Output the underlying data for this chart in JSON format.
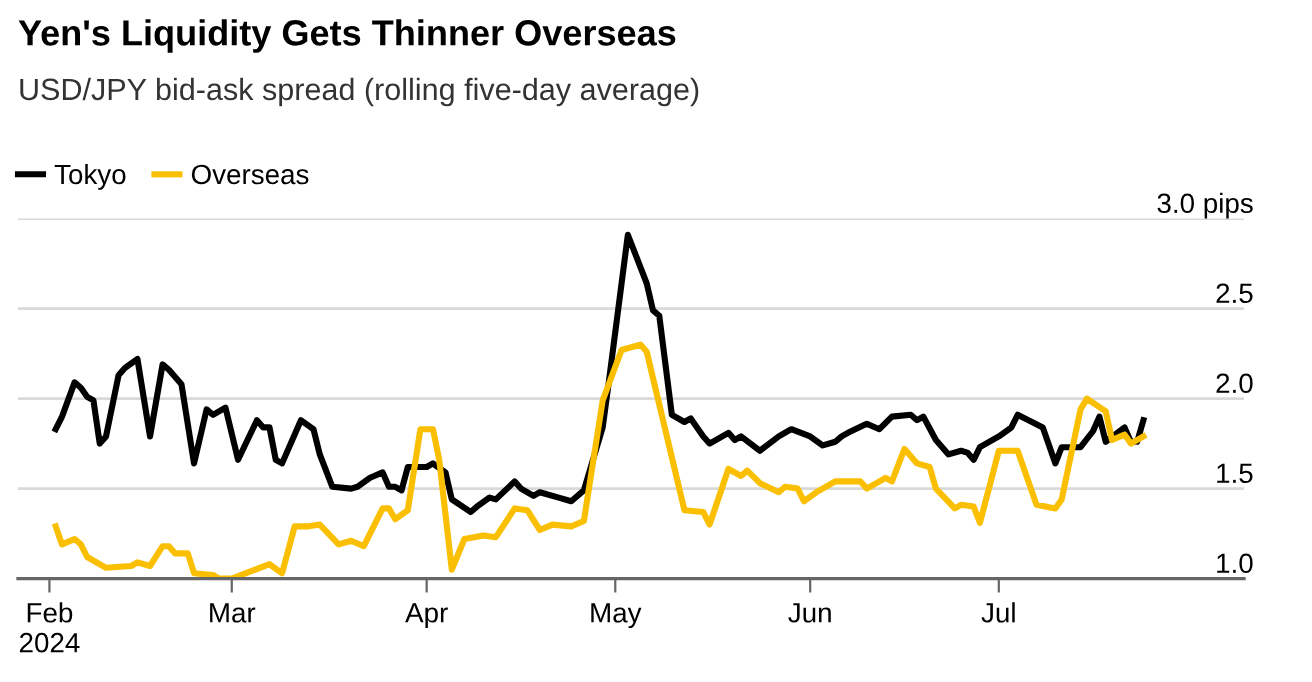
{
  "chart_data": {
    "type": "line",
    "title": "Yen's Liquidity Gets Thinner Overseas",
    "subtitle": "USD/JPY bid-ask spread (rolling five-day average)",
    "xlim": [
      "2024-01-27",
      "2024-08-09"
    ],
    "xticks": [
      {
        "value": "2024-02-01",
        "label": "Feb\n2024"
      },
      {
        "value": "2024-03-01",
        "label": "Mar"
      },
      {
        "value": "2024-04-01",
        "label": "Apr"
      },
      {
        "value": "2024-05-01",
        "label": "May"
      },
      {
        "value": "2024-06-01",
        "label": "Jun"
      },
      {
        "value": "2024-07-01",
        "label": "Jul"
      }
    ],
    "ylim": [
      1.0,
      3.0
    ],
    "yticks": [
      {
        "value": 1.0,
        "label": "1.0"
      },
      1.5,
      {
        "value": 2.0,
        "label": "2.0"
      },
      2.5,
      {
        "value": 3.0,
        "label": "3.0 pips"
      }
    ],
    "grid": "y",
    "legend": "top left",
    "marker": "none",
    "line_style": "solid",
    "series": [
      {
        "name": "Tokyo",
        "color": "#000000",
        "x": [
          "2024-02-02",
          "2024-02-03",
          "2024-02-05",
          "2024-02-06",
          "2024-02-07",
          "2024-02-08",
          "2024-02-09",
          "2024-02-10",
          "2024-02-12",
          "2024-02-13",
          "2024-02-15",
          "2024-02-17",
          "2024-02-19",
          "2024-02-20",
          "2024-02-22",
          "2024-02-24",
          "2024-02-26",
          "2024-02-27",
          "2024-02-29",
          "2024-03-02",
          "2024-03-05",
          "2024-03-06",
          "2024-03-07",
          "2024-03-08",
          "2024-03-09",
          "2024-03-12",
          "2024-03-14",
          "2024-03-15",
          "2024-03-17",
          "2024-03-20",
          "2024-03-21",
          "2024-03-23",
          "2024-03-25",
          "2024-03-26",
          "2024-03-27",
          "2024-03-28",
          "2024-03-29",
          "2024-04-01",
          "2024-04-02",
          "2024-04-04",
          "2024-04-05",
          "2024-04-08",
          "2024-04-09",
          "2024-04-11",
          "2024-04-12",
          "2024-04-15",
          "2024-04-16",
          "2024-04-18",
          "2024-04-19",
          "2024-04-22",
          "2024-04-24",
          "2024-04-26",
          "2024-04-29",
          "2024-04-30",
          "2024-05-03",
          "2024-05-06",
          "2024-05-07",
          "2024-05-08",
          "2024-05-10",
          "2024-05-12",
          "2024-05-13",
          "2024-05-15",
          "2024-05-16",
          "2024-05-19",
          "2024-05-20",
          "2024-05-21",
          "2024-05-24",
          "2024-05-27",
          "2024-05-29",
          "2024-06-01",
          "2024-06-03",
          "2024-06-05",
          "2024-06-06",
          "2024-06-07",
          "2024-06-10",
          "2024-06-12",
          "2024-06-14",
          "2024-06-17",
          "2024-06-18",
          "2024-06-19",
          "2024-06-21",
          "2024-06-23",
          "2024-06-25",
          "2024-06-26",
          "2024-06-27",
          "2024-06-28",
          "2024-07-01",
          "2024-07-03",
          "2024-07-04",
          "2024-07-08",
          "2024-07-09",
          "2024-07-10",
          "2024-07-11",
          "2024-07-14",
          "2024-07-16",
          "2024-07-17",
          "2024-07-18",
          "2024-07-21",
          "2024-07-22",
          "2024-07-23",
          "2024-07-24"
        ],
        "values": [
          1.83,
          1.9,
          2.09,
          2.06,
          2.01,
          1.99,
          1.75,
          1.79,
          2.13,
          2.17,
          2.22,
          1.79,
          2.19,
          2.16,
          2.08,
          1.64,
          1.94,
          1.91,
          1.95,
          1.66,
          1.88,
          1.84,
          1.84,
          1.66,
          1.64,
          1.88,
          1.83,
          1.69,
          1.51,
          1.5,
          1.51,
          1.56,
          1.59,
          1.51,
          1.51,
          1.49,
          1.62,
          1.62,
          1.64,
          1.59,
          1.44,
          1.37,
          1.4,
          1.45,
          1.44,
          1.54,
          1.5,
          1.46,
          1.48,
          1.45,
          1.43,
          1.49,
          1.84,
          2.1,
          2.91,
          2.64,
          2.49,
          2.46,
          1.91,
          1.87,
          1.89,
          1.79,
          1.75,
          1.81,
          1.77,
          1.79,
          1.71,
          1.79,
          1.83,
          1.79,
          1.74,
          1.76,
          1.79,
          1.81,
          1.86,
          1.83,
          1.9,
          1.91,
          1.88,
          1.9,
          1.77,
          1.69,
          1.71,
          1.7,
          1.66,
          1.73,
          1.79,
          1.84,
          1.91,
          1.84,
          1.74,
          1.64,
          1.73,
          1.73,
          1.82,
          1.9,
          1.76,
          1.84,
          1.76,
          1.76,
          1.88
        ]
      },
      {
        "name": "Overseas",
        "color": "#f9bf00",
        "x": [
          "2024-02-02",
          "2024-02-03",
          "2024-02-05",
          "2024-02-06",
          "2024-02-07",
          "2024-02-10",
          "2024-02-14",
          "2024-02-15",
          "2024-02-17",
          "2024-02-19",
          "2024-02-20",
          "2024-02-21",
          "2024-02-23",
          "2024-02-24",
          "2024-02-27",
          "2024-02-28",
          "2024-03-01",
          "2024-03-04",
          "2024-03-07",
          "2024-03-09",
          "2024-03-11",
          "2024-03-13",
          "2024-03-15",
          "2024-03-18",
          "2024-03-20",
          "2024-03-22",
          "2024-03-25",
          "2024-03-26",
          "2024-03-27",
          "2024-03-29",
          "2024-03-31",
          "2024-04-02",
          "2024-04-03",
          "2024-04-05",
          "2024-04-07",
          "2024-04-10",
          "2024-04-12",
          "2024-04-15",
          "2024-04-17",
          "2024-04-19",
          "2024-04-21",
          "2024-04-24",
          "2024-04-26",
          "2024-04-29",
          "2024-05-02",
          "2024-05-05",
          "2024-05-06",
          "2024-05-12",
          "2024-05-15",
          "2024-05-16",
          "2024-05-19",
          "2024-05-21",
          "2024-05-22",
          "2024-05-24",
          "2024-05-27",
          "2024-05-28",
          "2024-05-30",
          "2024-05-31",
          "2024-06-02",
          "2024-06-05",
          "2024-06-09",
          "2024-06-10",
          "2024-06-13",
          "2024-06-14",
          "2024-06-16",
          "2024-06-18",
          "2024-06-20",
          "2024-06-21",
          "2024-06-24",
          "2024-06-25",
          "2024-06-27",
          "2024-06-28",
          "2024-07-01",
          "2024-07-04",
          "2024-07-07",
          "2024-07-10",
          "2024-07-11",
          "2024-07-14",
          "2024-07-15",
          "2024-07-18",
          "2024-07-19",
          "2024-07-21",
          "2024-07-22",
          "2024-07-24"
        ],
        "values": [
          1.29,
          1.19,
          1.22,
          1.19,
          1.12,
          1.06,
          1.07,
          1.09,
          1.07,
          1.18,
          1.18,
          1.14,
          1.14,
          1.03,
          1.02,
          1.0,
          1.0,
          1.04,
          1.08,
          1.03,
          1.29,
          1.29,
          1.3,
          1.19,
          1.21,
          1.18,
          1.39,
          1.39,
          1.33,
          1.38,
          1.83,
          1.83,
          1.66,
          1.05,
          1.22,
          1.24,
          1.23,
          1.39,
          1.38,
          1.27,
          1.3,
          1.29,
          1.32,
          1.99,
          2.27,
          2.3,
          2.26,
          1.38,
          1.37,
          1.3,
          1.61,
          1.57,
          1.6,
          1.53,
          1.48,
          1.51,
          1.5,
          1.43,
          1.48,
          1.54,
          1.54,
          1.5,
          1.56,
          1.54,
          1.72,
          1.64,
          1.62,
          1.5,
          1.39,
          1.41,
          1.4,
          1.31,
          1.71,
          1.71,
          1.41,
          1.39,
          1.44,
          1.94,
          2.0,
          1.93,
          1.77,
          1.8,
          1.75,
          1.79
        ]
      }
    ]
  }
}
